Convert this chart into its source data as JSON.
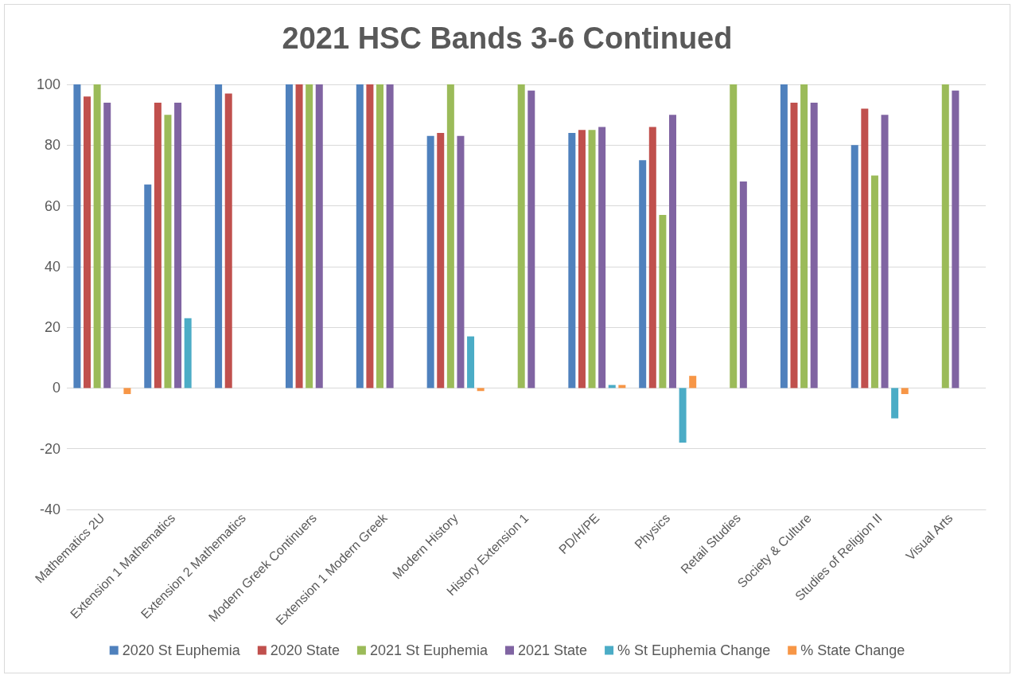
{
  "chart_data": {
    "type": "bar",
    "title": "2021 HSC Bands 3-6 Continued",
    "categories": [
      "Mathematics 2U",
      "Extension 1 Mathematics",
      "Extension 2 Mathematics",
      "Modern Greek Continuers",
      "Extension 1 Modern Greek",
      "Modern History",
      "History Extension 1",
      "PD/H/PE",
      "Physics",
      "Retail Studies",
      "Society & Culture",
      "Studies of Religion II",
      "Visual Arts"
    ],
    "series": [
      {
        "name": "2020 St Euphemia",
        "color": "#4f81bd",
        "values": [
          100,
          67,
          100,
          100,
          100,
          83,
          null,
          84,
          75,
          null,
          100,
          80,
          null
        ]
      },
      {
        "name": "2020 State",
        "color": "#c0504d",
        "values": [
          96,
          94,
          97,
          100,
          100,
          84,
          null,
          85,
          86,
          null,
          94,
          92,
          null
        ]
      },
      {
        "name": "2021 St Euphemia",
        "color": "#9bbb59",
        "values": [
          100,
          90,
          null,
          100,
          100,
          100,
          100,
          85,
          57,
          100,
          100,
          70,
          100
        ]
      },
      {
        "name": "2021 State",
        "color": "#8064a2",
        "values": [
          94,
          94,
          null,
          100,
          100,
          83,
          98,
          86,
          90,
          68,
          94,
          90,
          98
        ]
      },
      {
        "name": "% St Euphemia Change",
        "color": "#4bacc6",
        "values": [
          null,
          23,
          null,
          null,
          null,
          17,
          null,
          1,
          -18,
          null,
          null,
          -10,
          null
        ]
      },
      {
        "name": "% State Change",
        "color": "#f79646",
        "values": [
          -2,
          null,
          null,
          null,
          null,
          -1,
          null,
          1,
          4,
          null,
          null,
          -2,
          null
        ]
      }
    ],
    "ylim": [
      -40,
      100
    ],
    "yticks": [
      -40,
      -20,
      0,
      20,
      40,
      60,
      80,
      100
    ],
    "grid": "y",
    "legend": "bottom"
  }
}
